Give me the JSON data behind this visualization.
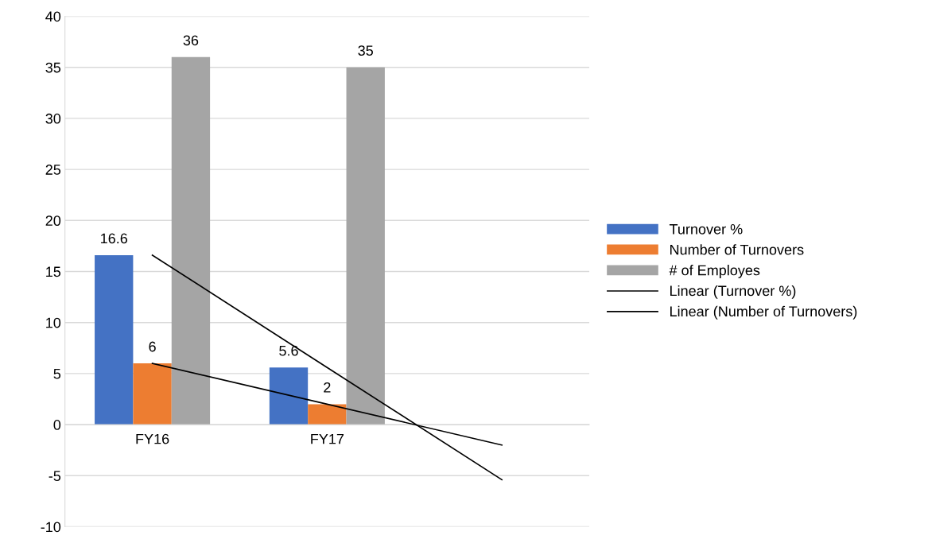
{
  "chart_data": {
    "type": "bar",
    "categories": [
      "FY16",
      "FY17",
      null
    ],
    "series": [
      {
        "name": "Turnover %",
        "color": "#4472c4",
        "values": [
          16.6,
          5.6,
          null
        ],
        "value_labels": [
          "16.6",
          "5.6",
          null
        ]
      },
      {
        "name": "Number of Turnovers",
        "color": "#ed7d31",
        "values": [
          6,
          2,
          null
        ],
        "value_labels": [
          "6",
          "2",
          null
        ]
      },
      {
        "name": "# of Employes",
        "color": "#a5a5a5",
        "values": [
          36,
          35,
          null
        ],
        "value_labels": [
          "36",
          "35",
          null
        ]
      },
      {
        "name": "Linear (Turnover %)",
        "type": "line",
        "color": "#000000",
        "values": [
          16.6,
          5.6,
          -5.4
        ]
      },
      {
        "name": "Linear (Number of Turnovers)",
        "type": "line",
        "color": "#000000",
        "values": [
          6,
          2,
          -2
        ]
      }
    ],
    "ylim": [
      -10,
      40
    ],
    "yticks": [
      -10,
      -5,
      0,
      5,
      10,
      15,
      20,
      25,
      30,
      35,
      40
    ],
    "grid": "y",
    "legend": "right",
    "marker": "none",
    "line_style": "solid"
  }
}
